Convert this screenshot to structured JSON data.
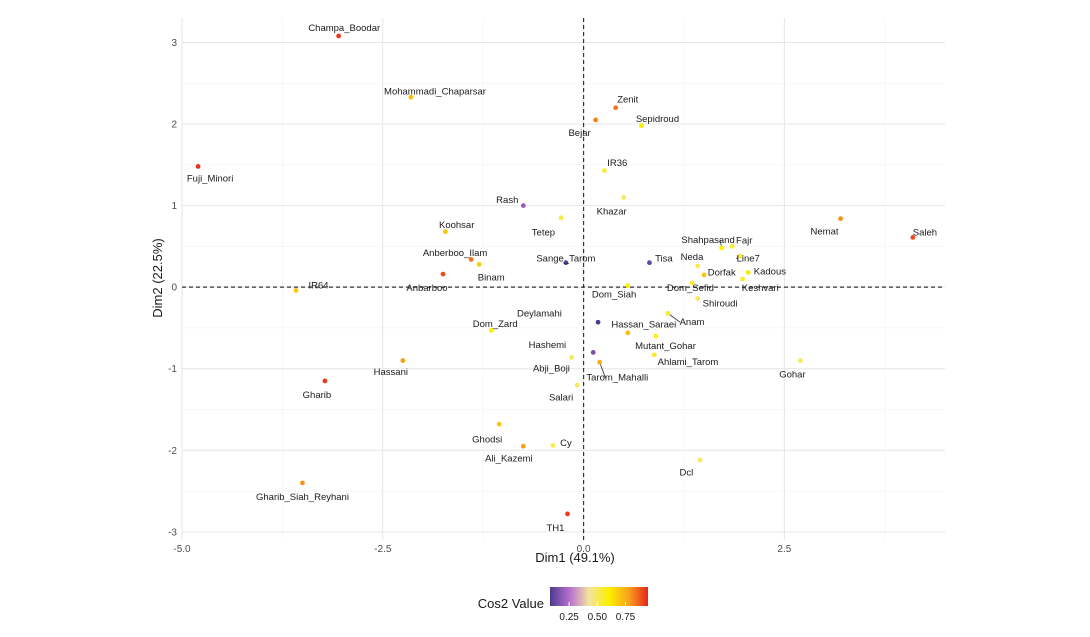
{
  "chart_data": {
    "type": "scatter",
    "xlabel": "Dim1 (49.1%)",
    "ylabel": "Dim2 (22.5%)",
    "xlim": [
      -5.0,
      4.5
    ],
    "ylim": [
      -3.1,
      3.3
    ],
    "x_ticks": [
      -5.0,
      -2.5,
      0.0,
      2.5
    ],
    "x_tick_labels": [
      "-5.0",
      "-2.5",
      "0.0",
      "2.5"
    ],
    "y_ticks": [
      -3,
      -2,
      -1,
      0,
      1,
      2,
      3
    ],
    "y_tick_labels": [
      "-3",
      "-2",
      "-1",
      "0",
      "1",
      "2",
      "3"
    ],
    "grid": true,
    "reference_lines": {
      "x": 0,
      "y": 0,
      "style": "dashed"
    },
    "legend": {
      "title": "Cos2 Value",
      "placement": "bottom",
      "ticks": [
        0.25,
        0.5,
        0.75
      ],
      "tick_labels": [
        "0.25",
        "0.50",
        "0.75"
      ],
      "range": [
        0.08,
        0.95
      ],
      "colors": [
        "#4a3b8f",
        "#b86fd0",
        "#f3e4a0",
        "#fdf000",
        "#f9a31b",
        "#e8251f"
      ]
    },
    "points": [
      {
        "name": "Champa_Boodar",
        "x": -3.05,
        "y": 3.08,
        "cos2": 0.92
      },
      {
        "name": "Mohammadi_Chaparsar",
        "x": -2.15,
        "y": 2.33,
        "cos2": 0.72
      },
      {
        "name": "Fuji_Minori",
        "x": -4.8,
        "y": 1.48,
        "cos2": 0.93
      },
      {
        "name": "Zenit",
        "x": 0.4,
        "y": 2.2,
        "cos2": 0.84
      },
      {
        "name": "Sepidroud",
        "x": 0.72,
        "y": 1.98,
        "cos2": 0.6
      },
      {
        "name": "Bejar",
        "x": 0.15,
        "y": 2.05,
        "cos2": 0.82
      },
      {
        "name": "IR36",
        "x": 0.26,
        "y": 1.43,
        "cos2": 0.55
      },
      {
        "name": "Khazar",
        "x": 0.5,
        "y": 1.1,
        "cos2": 0.5
      },
      {
        "name": "Rash",
        "x": -0.75,
        "y": 1.0,
        "cos2": 0.2
      },
      {
        "name": "Tetep",
        "x": -0.28,
        "y": 0.85,
        "cos2": 0.53
      },
      {
        "name": "Koohsar",
        "x": -1.72,
        "y": 0.68,
        "cos2": 0.7
      },
      {
        "name": "Anberboo_Ilam",
        "x": -1.4,
        "y": 0.34,
        "cos2": 0.84
      },
      {
        "name": "Binam",
        "x": -1.3,
        "y": 0.28,
        "cos2": 0.68
      },
      {
        "name": "Anbarboo",
        "x": -1.75,
        "y": 0.16,
        "cos2": 0.9
      },
      {
        "name": "IR64",
        "x": -3.58,
        "y": -0.04,
        "cos2": 0.7
      },
      {
        "name": "Sange_Tarom",
        "x": -0.22,
        "y": 0.3,
        "cos2": 0.1
      },
      {
        "name": "Tisa",
        "x": 0.82,
        "y": 0.3,
        "cos2": 0.12
      },
      {
        "name": "Shahpasand",
        "x": 1.72,
        "y": 0.48,
        "cos2": 0.6
      },
      {
        "name": "Fajr",
        "x": 1.85,
        "y": 0.5,
        "cos2": 0.55
      },
      {
        "name": "Neda",
        "x": 1.42,
        "y": 0.26,
        "cos2": 0.52
      },
      {
        "name": "Line7",
        "x": 1.95,
        "y": 0.38,
        "cos2": 0.55
      },
      {
        "name": "Dorfak",
        "x": 1.5,
        "y": 0.15,
        "cos2": 0.7
      },
      {
        "name": "Kadous",
        "x": 2.05,
        "y": 0.18,
        "cos2": 0.62
      },
      {
        "name": "Keshvari",
        "x": 1.98,
        "y": 0.1,
        "cos2": 0.55
      },
      {
        "name": "Dom_Sefid",
        "x": 1.35,
        "y": 0.05,
        "cos2": 0.55
      },
      {
        "name": "Dom_Siah",
        "x": 0.55,
        "y": 0.02,
        "cos2": 0.6
      },
      {
        "name": "Shiroudi",
        "x": 1.42,
        "y": -0.14,
        "cos2": 0.5
      },
      {
        "name": "Anam",
        "x": 1.05,
        "y": -0.32,
        "cos2": 0.55
      },
      {
        "name": "Nemat",
        "x": 3.2,
        "y": 0.84,
        "cos2": 0.8
      },
      {
        "name": "Saleh",
        "x": 4.1,
        "y": 0.61,
        "cos2": 0.9
      },
      {
        "name": "Deylamahi",
        "x": 0.18,
        "y": -0.43,
        "cos2": 0.08
      },
      {
        "name": "Hassan_Saraei",
        "x": 0.55,
        "y": -0.56,
        "cos2": 0.72
      },
      {
        "name": "Dom_Zard",
        "x": -1.15,
        "y": -0.53,
        "cos2": 0.6
      },
      {
        "name": "Hashemi",
        "x": 0.12,
        "y": -0.8,
        "cos2": 0.15
      },
      {
        "name": "Mutant_Gohar",
        "x": 0.9,
        "y": -0.6,
        "cos2": 0.6
      },
      {
        "name": "Ahlami_Tarom",
        "x": 0.88,
        "y": -0.83,
        "cos2": 0.55
      },
      {
        "name": "Abji_Boji",
        "x": -0.15,
        "y": -0.86,
        "cos2": 0.5
      },
      {
        "name": "Tarom_Mahalli",
        "x": 0.2,
        "y": -0.92,
        "cos2": 0.75
      },
      {
        "name": "Gohar",
        "x": 2.7,
        "y": -0.9,
        "cos2": 0.5
      },
      {
        "name": "Salari",
        "x": -0.08,
        "y": -1.2,
        "cos2": 0.5
      },
      {
        "name": "Hassani",
        "x": -2.25,
        "y": -0.9,
        "cos2": 0.78
      },
      {
        "name": "Gharib",
        "x": -3.22,
        "y": -1.15,
        "cos2": 0.92
      },
      {
        "name": "Ghodsi",
        "x": -1.05,
        "y": -1.68,
        "cos2": 0.7
      },
      {
        "name": "Cy",
        "x": -0.38,
        "y": -1.94,
        "cos2": 0.52
      },
      {
        "name": "Ali_Kazemi",
        "x": -0.75,
        "y": -1.95,
        "cos2": 0.78
      },
      {
        "name": "Dcl",
        "x": 1.45,
        "y": -2.12,
        "cos2": 0.5
      },
      {
        "name": "Gharib_Siah_Reyhani",
        "x": -3.5,
        "y": -2.4,
        "cos2": 0.8
      },
      {
        "name": "TH1",
        "x": -0.2,
        "y": -2.78,
        "cos2": 0.92
      }
    ],
    "labels": [
      {
        "text": "Champa_Boodar",
        "point": "Champa_Boodar",
        "lx": -2.98,
        "ly": 3.18,
        "anchor": "middle"
      },
      {
        "text": "Mohammadi_Chaparsar",
        "point": "Mohammadi_Chaparsar",
        "lx": -1.85,
        "ly": 2.4,
        "anchor": "middle"
      },
      {
        "text": "Fuji_Minori",
        "point": "Fuji_Minori",
        "lx": -4.65,
        "ly": 1.33,
        "anchor": "middle"
      },
      {
        "text": "Zenit",
        "point": "Zenit",
        "lx": 0.55,
        "ly": 2.3,
        "anchor": "middle"
      },
      {
        "text": "Sepidroud",
        "point": "Sepidroud",
        "lx": 0.92,
        "ly": 2.06,
        "anchor": "middle"
      },
      {
        "text": "Bejar",
        "point": "Bejar",
        "lx": -0.05,
        "ly": 1.89,
        "anchor": "middle"
      },
      {
        "text": "IR36",
        "point": "IR36",
        "lx": 0.42,
        "ly": 1.52,
        "anchor": "middle"
      },
      {
        "text": "Khazar",
        "point": "Khazar",
        "lx": 0.35,
        "ly": 0.93,
        "anchor": "middle"
      },
      {
        "text": "Rash",
        "point": "Rash",
        "lx": -0.95,
        "ly": 1.07,
        "anchor": "middle"
      },
      {
        "text": "Tetep",
        "point": "Tetep",
        "lx": -0.5,
        "ly": 0.67,
        "anchor": "middle"
      },
      {
        "text": "Koohsar",
        "point": "Koohsar",
        "lx": -1.58,
        "ly": 0.76,
        "anchor": "middle"
      },
      {
        "text": "Anberboo_Ilam",
        "point": "Anberboo_Ilam",
        "lx": -1.6,
        "ly": 0.42,
        "anchor": "middle"
      },
      {
        "text": "Binam",
        "point": "Binam",
        "lx": -1.15,
        "ly": 0.12,
        "anchor": "middle"
      },
      {
        "text": "Anbarboo",
        "point": "Anbarboo",
        "lx": -1.95,
        "ly": -0.01,
        "anchor": "middle"
      },
      {
        "text": "IR64",
        "point": "IR64",
        "lx": -3.3,
        "ly": 0.02,
        "anchor": "middle"
      },
      {
        "text": "Sange_Tarom",
        "point": "Sange_Tarom",
        "lx": -0.22,
        "ly": 0.35,
        "anchor": "middle"
      },
      {
        "text": "Tisa",
        "point": "Tisa",
        "lx": 1.0,
        "ly": 0.35,
        "anchor": "middle"
      },
      {
        "text": "Shahpasand",
        "point": "Shahpasand",
        "lx": 1.55,
        "ly": 0.58,
        "anchor": "middle"
      },
      {
        "text": "Fajr",
        "point": "Fajr",
        "lx": 2.0,
        "ly": 0.57,
        "anchor": "middle"
      },
      {
        "text": "Neda",
        "point": "Neda",
        "lx": 1.35,
        "ly": 0.37,
        "anchor": "middle"
      },
      {
        "text": "Line7",
        "point": "Line7",
        "lx": 2.05,
        "ly": 0.35,
        "anchor": "middle"
      },
      {
        "text": "Dorfak",
        "point": "Dorfak",
        "lx": 1.72,
        "ly": 0.18,
        "anchor": "middle"
      },
      {
        "text": "Kadous",
        "point": "Kadous",
        "lx": 2.32,
        "ly": 0.19,
        "anchor": "middle"
      },
      {
        "text": "Keshvari",
        "point": "Keshvari",
        "lx": 2.2,
        "ly": -0.01,
        "anchor": "middle"
      },
      {
        "text": "Dom_Sefid",
        "point": "Dom_Sefid",
        "lx": 1.33,
        "ly": -0.01,
        "anchor": "middle"
      },
      {
        "text": "Dom_Siah",
        "point": "Dom_Siah",
        "lx": 0.38,
        "ly": -0.09,
        "anchor": "middle"
      },
      {
        "text": "Shiroudi",
        "point": "Shiroudi",
        "lx": 1.7,
        "ly": -0.2,
        "anchor": "middle"
      },
      {
        "text": "Anam",
        "point": "Anam",
        "lx": 1.35,
        "ly": -0.43,
        "anchor": "middle"
      },
      {
        "text": "Nemat",
        "point": "Nemat",
        "lx": 3.0,
        "ly": 0.68,
        "anchor": "middle"
      },
      {
        "text": "Saleh",
        "point": "Saleh",
        "lx": 4.25,
        "ly": 0.67,
        "anchor": "middle"
      },
      {
        "text": "Deylamahi",
        "point": "Deylamahi",
        "lx": -0.55,
        "ly": -0.32,
        "anchor": "middle"
      },
      {
        "text": "Hassan_Saraei",
        "point": "Hassan_Saraei",
        "lx": 0.75,
        "ly": -0.46,
        "anchor": "middle"
      },
      {
        "text": "Dom_Zard",
        "point": "Dom_Zard",
        "lx": -1.1,
        "ly": -0.45,
        "anchor": "middle"
      },
      {
        "text": "Hashemi",
        "point": "Hashemi",
        "lx": -0.45,
        "ly": -0.71,
        "anchor": "middle"
      },
      {
        "text": "Mutant_Gohar",
        "point": "Mutant_Gohar",
        "lx": 1.02,
        "ly": -0.72,
        "anchor": "middle"
      },
      {
        "text": "Ahlami_Tarom",
        "point": "Ahlami_Tarom",
        "lx": 1.3,
        "ly": -0.92,
        "anchor": "middle"
      },
      {
        "text": "Abji_Boji",
        "point": "Abji_Boji",
        "lx": -0.4,
        "ly": -1.0,
        "anchor": "middle"
      },
      {
        "text": "Tarom_Mahalli",
        "point": "Tarom_Mahalli",
        "lx": 0.42,
        "ly": -1.11,
        "anchor": "middle"
      },
      {
        "text": "Gohar",
        "point": "Gohar",
        "lx": 2.6,
        "ly": -1.07,
        "anchor": "middle"
      },
      {
        "text": "Salari",
        "point": "Salari",
        "lx": -0.28,
        "ly": -1.35,
        "anchor": "middle"
      },
      {
        "text": "Hassani",
        "point": "Hassani",
        "lx": -2.4,
        "ly": -1.04,
        "anchor": "middle"
      },
      {
        "text": "Gharib",
        "point": "Gharib",
        "lx": -3.32,
        "ly": -1.32,
        "anchor": "middle"
      },
      {
        "text": "Ghodsi",
        "point": "Ghodsi",
        "lx": -1.2,
        "ly": -1.87,
        "anchor": "middle"
      },
      {
        "text": "Cy",
        "point": "Cy",
        "lx": -0.22,
        "ly": -1.91,
        "anchor": "middle"
      },
      {
        "text": "Ali_Kazemi",
        "point": "Ali_Kazemi",
        "lx": -0.93,
        "ly": -2.1,
        "anchor": "middle"
      },
      {
        "text": "Dcl",
        "point": "Dcl",
        "lx": 1.28,
        "ly": -2.27,
        "anchor": "middle"
      },
      {
        "text": "Gharib_Siah_Reyhani",
        "point": "Gharib_Siah_Reyhani",
        "lx": -3.5,
        "ly": -2.57,
        "anchor": "middle"
      },
      {
        "text": "TH1",
        "point": "TH1",
        "lx": -0.35,
        "ly": -2.95,
        "anchor": "middle"
      }
    ],
    "leader_lines": [
      "Anam",
      "Tarom_Mahalli",
      "Line7",
      "Shahpasand"
    ]
  }
}
